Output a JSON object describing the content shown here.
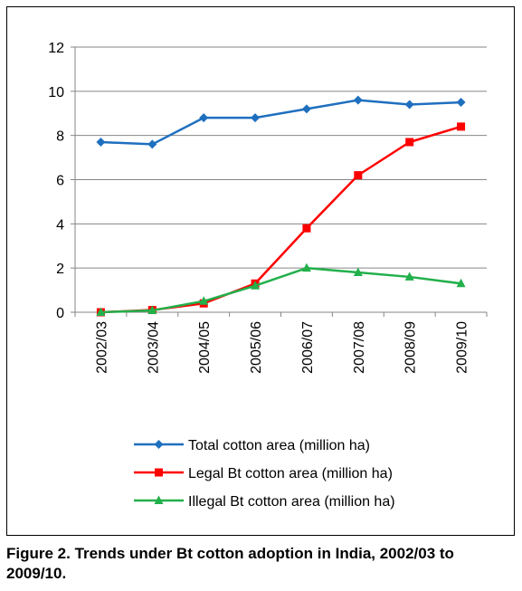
{
  "caption": "Figure 2. Trends under Bt cotton adoption in India, 2002/03 to 2009/10.",
  "chart_data": {
    "type": "line",
    "categories": [
      "2002/03",
      "2003/04",
      "2004/05",
      "2005/06",
      "2006/07",
      "2007/08",
      "2008/09",
      "2009/10"
    ],
    "ylim": [
      0,
      12
    ],
    "yticks": [
      0,
      2,
      4,
      6,
      8,
      10,
      12
    ],
    "grid": "horizontal",
    "legend_position": "bottom",
    "series": [
      {
        "name": "Total cotton area (million ha)",
        "color": "#1f6fbf",
        "marker": "diamond",
        "values": [
          7.7,
          7.6,
          8.8,
          8.8,
          9.2,
          9.6,
          9.4,
          9.5
        ]
      },
      {
        "name": "Legal Bt cotton area (million ha)",
        "color": "#ff0000",
        "marker": "square",
        "values": [
          0.0,
          0.1,
          0.4,
          1.3,
          3.8,
          6.2,
          7.7,
          8.4
        ]
      },
      {
        "name": "Illegal Bt cotton area (million ha)",
        "color": "#22b04b",
        "marker": "triangle",
        "values": [
          0.0,
          0.08,
          0.5,
          1.2,
          2.0,
          1.8,
          1.6,
          1.3
        ]
      }
    ]
  }
}
